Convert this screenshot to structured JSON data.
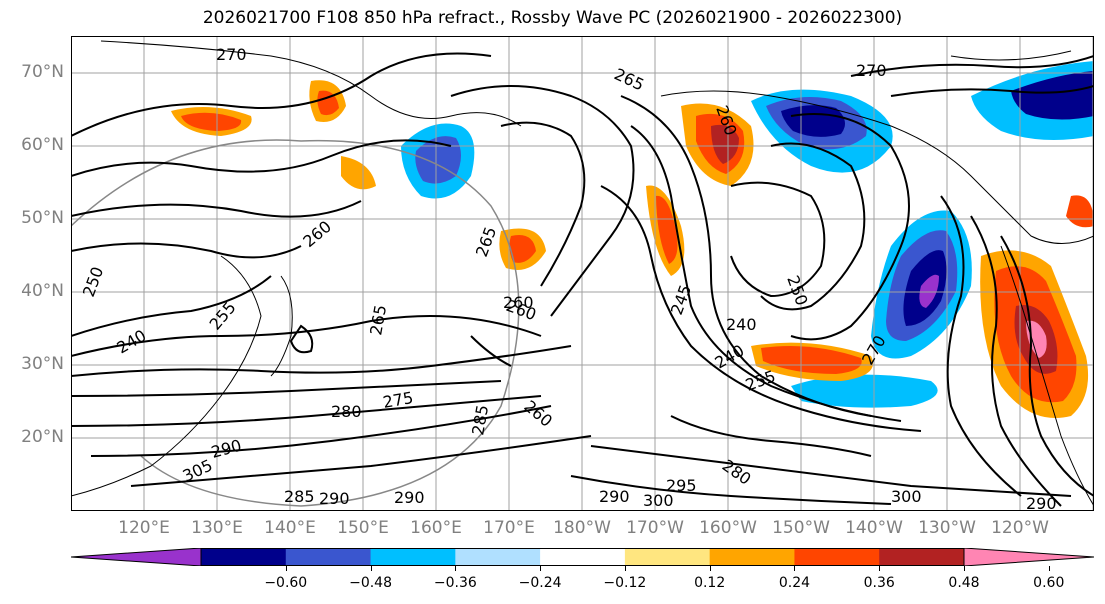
{
  "title": "2026021700 F108 850 hPa refract., Rossby Wave PC (2026021900 - 2026022300)",
  "lat_labels": [
    "70°N",
    "60°N",
    "50°N",
    "40°N",
    "30°N",
    "20°N"
  ],
  "lon_labels": [
    "120°E",
    "130°E",
    "140°E",
    "150°E",
    "160°E",
    "170°E",
    "180°W",
    "170°W",
    "160°W",
    "150°W",
    "140°W",
    "130°W",
    "120°W"
  ],
  "contour_labels": [
    "270",
    "265",
    "260",
    "270",
    "260",
    "265",
    "260",
    "245",
    "250",
    "240",
    "240",
    "255",
    "270",
    "265",
    "260",
    "280",
    "275",
    "285",
    "260",
    "255",
    "290",
    "305",
    "285",
    "290",
    "290",
    "300",
    "295",
    "280",
    "290",
    "300",
    "290",
    "250",
    "240"
  ],
  "colorbar": {
    "ticks": [
      "−0.60",
      "−0.48",
      "−0.36",
      "−0.24",
      "−0.12",
      "0.12",
      "0.24",
      "0.36",
      "0.48",
      "0.60"
    ],
    "colors": [
      "#9932cc",
      "#00008b",
      "#3a56cf",
      "#00bfff",
      "#b0e0ff",
      "#ffffff",
      "#ffe680",
      "#ffa500",
      "#ff4500",
      "#b22222",
      "#ff85b3"
    ]
  }
}
